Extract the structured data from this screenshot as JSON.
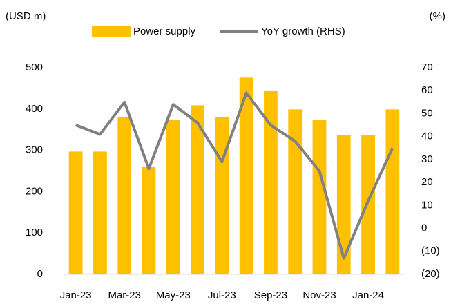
{
  "chart_data": {
    "type": "bar",
    "y_label": "(USD m)",
    "y2_label": "(%)",
    "categories": [
      "Jan-23",
      null,
      "Mar-23",
      null,
      "May-23",
      null,
      "Jul-23",
      null,
      "Sep-23",
      null,
      "Nov-23",
      null,
      "Jan-24",
      null
    ],
    "series": [
      {
        "name": "Power supply",
        "type": "bar",
        "color": "#FFC000",
        "values": [
          297,
          297,
          381,
          260,
          374,
          409,
          380,
          476,
          445,
          399,
          374,
          337,
          337,
          399
        ]
      },
      {
        "name": "YoY growth (RHS)",
        "type": "line",
        "axis": "y2",
        "color": "#808080",
        "values": [
          45,
          41,
          55,
          26,
          54,
          46,
          29,
          59,
          45,
          38,
          25,
          -13,
          12,
          35
        ]
      }
    ],
    "ylim": [
      0,
      500
    ],
    "yticks": [
      0,
      100,
      200,
      300,
      400,
      500
    ],
    "y2lim": [
      -20,
      70
    ],
    "y2ticks": [
      {
        "value": -20,
        "label": "(20)"
      },
      {
        "value": -10,
        "label": "(10)"
      },
      0,
      10,
      20,
      30,
      40,
      50,
      60,
      70
    ],
    "legend": "top",
    "grid": false
  }
}
